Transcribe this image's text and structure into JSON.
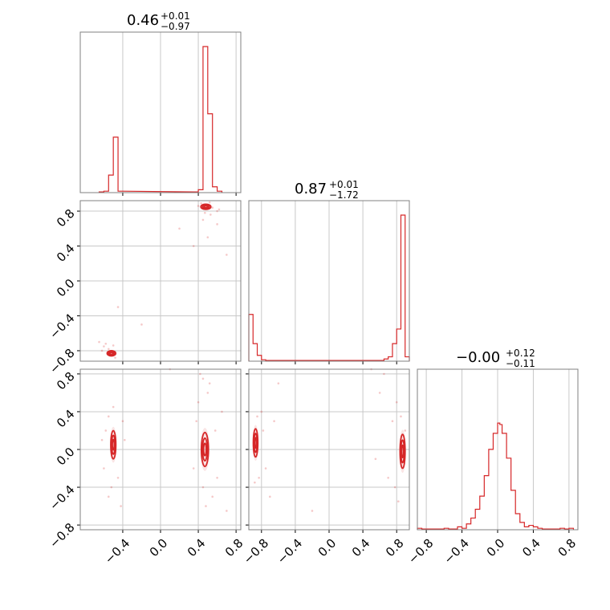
{
  "chart_data": {
    "type": "corner",
    "parameters": [
      {
        "value": "0.46",
        "upper": "+0.01",
        "lower": "−0.97"
      },
      {
        "value": "0.87",
        "upper": "+0.01",
        "lower": "−1.72"
      },
      {
        "value": "−0.00",
        "upper": "+0.12",
        "lower": "−0.11"
      }
    ],
    "xlim": [
      [
        -0.85,
        0.85
      ],
      [
        -0.95,
        0.95
      ],
      [
        -0.9,
        0.9
      ]
    ],
    "ylim": [
      [
        -0.92,
        0.92
      ],
      [
        -0.85,
        0.85
      ]
    ],
    "ticks": {
      "p0": [
        "−0.4",
        "0.0",
        "0.4",
        "0.8"
      ],
      "p1": [
        "−0.8",
        "−0.4",
        "0.0",
        "0.4",
        "0.8"
      ],
      "p2": [
        "−0.8",
        "−0.4",
        "0.0",
        "0.4",
        "0.8"
      ]
    },
    "tick_values": {
      "p0": [
        -0.4,
        0.0,
        0.4,
        0.8
      ],
      "p1": [
        -0.8,
        -0.4,
        0.0,
        0.4,
        0.8
      ],
      "p2": [
        -0.8,
        -0.4,
        0.0,
        0.4,
        0.8
      ]
    },
    "histograms": [
      {
        "parameter": 0,
        "bins": [
          [
            -0.65,
            -0.6,
            0.005
          ],
          [
            -0.6,
            -0.55,
            0.01
          ],
          [
            -0.55,
            -0.5,
            0.12
          ],
          [
            -0.5,
            -0.45,
            0.38
          ],
          [
            -0.45,
            -0.4,
            0.01
          ],
          [
            0.35,
            0.4,
            0.005
          ],
          [
            0.4,
            0.45,
            0.02
          ],
          [
            0.45,
            0.5,
            1.0
          ],
          [
            0.5,
            0.55,
            0.54
          ],
          [
            0.55,
            0.6,
            0.04
          ],
          [
            0.6,
            0.65,
            0.01
          ]
        ]
      },
      {
        "parameter": 1,
        "bins": [
          [
            -0.95,
            -0.9,
            0.32
          ],
          [
            -0.9,
            -0.85,
            0.12
          ],
          [
            -0.85,
            -0.8,
            0.04
          ],
          [
            -0.8,
            -0.75,
            0.01
          ],
          [
            -0.75,
            0.65,
            0.005
          ],
          [
            0.65,
            0.7,
            0.015
          ],
          [
            0.7,
            0.75,
            0.03
          ],
          [
            0.75,
            0.8,
            0.12
          ],
          [
            0.8,
            0.85,
            0.22
          ],
          [
            0.85,
            0.9,
            1.0
          ],
          [
            0.9,
            0.95,
            0.03
          ]
        ]
      },
      {
        "parameter": 2,
        "bins": [
          [
            -0.9,
            -0.85,
            0.01
          ],
          [
            -0.85,
            -0.6,
            0.005
          ],
          [
            -0.6,
            -0.55,
            0.01
          ],
          [
            -0.55,
            -0.45,
            0.005
          ],
          [
            -0.45,
            -0.4,
            0.02
          ],
          [
            -0.4,
            -0.35,
            0.01
          ],
          [
            -0.35,
            -0.3,
            0.04
          ],
          [
            -0.3,
            -0.25,
            0.08
          ],
          [
            -0.25,
            -0.2,
            0.14
          ],
          [
            -0.2,
            -0.15,
            0.23
          ],
          [
            -0.15,
            -0.1,
            0.37
          ],
          [
            -0.1,
            -0.05,
            0.55
          ],
          [
            -0.05,
            0.0,
            0.66
          ],
          [
            0.0,
            0.025,
            0.73
          ],
          [
            0.025,
            0.05,
            0.72
          ],
          [
            0.05,
            0.1,
            0.66
          ],
          [
            0.1,
            0.15,
            0.49
          ],
          [
            0.15,
            0.2,
            0.27
          ],
          [
            0.2,
            0.25,
            0.11
          ],
          [
            0.25,
            0.3,
            0.05
          ],
          [
            0.3,
            0.35,
            0.02
          ],
          [
            0.35,
            0.4,
            0.03
          ],
          [
            0.4,
            0.45,
            0.02
          ],
          [
            0.45,
            0.5,
            0.01
          ],
          [
            0.5,
            0.7,
            0.005
          ],
          [
            0.7,
            0.75,
            0.01
          ],
          [
            0.75,
            0.8,
            0.005
          ],
          [
            0.8,
            0.85,
            0.01
          ]
        ]
      }
    ],
    "scatter_panels": [
      {
        "x_param": 0,
        "y_param": 1,
        "modes": [
          {
            "cx": 0.48,
            "cy": 0.85,
            "sx": 0.035,
            "sy": 0.02
          },
          {
            "cx": -0.52,
            "cy": -0.83,
            "sx": 0.03,
            "sy": 0.02
          }
        ],
        "points": [
          [
            0.43,
            0.89
          ],
          [
            0.55,
            0.84
          ],
          [
            0.6,
            0.8
          ],
          [
            0.4,
            0.86
          ],
          [
            0.52,
            0.9
          ],
          [
            0.62,
            0.82
          ],
          [
            0.45,
            0.7
          ],
          [
            0.5,
            0.5
          ],
          [
            0.35,
            0.4
          ],
          [
            0.2,
            0.6
          ],
          [
            -0.6,
            -0.75
          ],
          [
            -0.65,
            -0.7
          ],
          [
            -0.55,
            -0.78
          ],
          [
            -0.62,
            -0.8
          ],
          [
            -0.48,
            -0.88
          ],
          [
            -0.45,
            -0.3
          ],
          [
            -0.2,
            -0.5
          ],
          [
            0.7,
            0.3
          ],
          [
            0.6,
            0.65
          ],
          [
            0.47,
            0.78
          ],
          [
            0.53,
            0.76
          ],
          [
            -0.58,
            -0.72
          ],
          [
            -0.5,
            -0.74
          ]
        ]
      },
      {
        "x_param": 0,
        "y_param": 2,
        "modes": [
          {
            "cx": -0.5,
            "cy": 0.05,
            "sx": 0.018,
            "sy": 0.1
          },
          {
            "cx": 0.47,
            "cy": 0.0,
            "sx": 0.025,
            "sy": 0.12
          }
        ],
        "points": [
          [
            -0.55,
            0.35
          ],
          [
            -0.5,
            0.45
          ],
          [
            -0.45,
            -0.3
          ],
          [
            -0.52,
            -0.4
          ],
          [
            -0.58,
            0.2
          ],
          [
            -0.6,
            -0.2
          ],
          [
            -0.4,
            0.3
          ],
          [
            -0.42,
            -0.6
          ],
          [
            -0.55,
            -0.5
          ],
          [
            0.4,
            0.5
          ],
          [
            0.5,
            0.6
          ],
          [
            0.45,
            -0.4
          ],
          [
            0.55,
            -0.5
          ],
          [
            0.38,
            0.3
          ],
          [
            0.6,
            -0.3
          ],
          [
            0.52,
            0.7
          ],
          [
            0.45,
            0.75
          ],
          [
            0.58,
            0.2
          ],
          [
            0.35,
            -0.2
          ],
          [
            0.48,
            -0.6
          ],
          [
            0.7,
            -0.65
          ],
          [
            0.65,
            0.4
          ],
          [
            0.42,
            0.8
          ],
          [
            0.1,
            0.85
          ],
          [
            -0.62,
            0.1
          ],
          [
            -0.38,
            0.1
          ]
        ]
      },
      {
        "x_param": 1,
        "y_param": 2,
        "modes": [
          {
            "cx": -0.87,
            "cy": 0.07,
            "sx": 0.018,
            "sy": 0.1
          },
          {
            "cx": 0.87,
            "cy": -0.02,
            "sx": 0.02,
            "sy": 0.12
          }
        ],
        "points": [
          [
            -0.85,
            0.35
          ],
          [
            -0.8,
            0.4
          ],
          [
            -0.83,
            -0.3
          ],
          [
            -0.88,
            -0.35
          ],
          [
            -0.78,
            0.2
          ],
          [
            -0.75,
            -0.2
          ],
          [
            -0.7,
            -0.5
          ],
          [
            -0.65,
            0.3
          ],
          [
            0.8,
            0.5
          ],
          [
            0.85,
            0.35
          ],
          [
            0.78,
            -0.4
          ],
          [
            0.82,
            -0.55
          ],
          [
            0.75,
            0.3
          ],
          [
            0.7,
            -0.3
          ],
          [
            0.65,
            0.8
          ],
          [
            0.55,
            -0.1
          ],
          [
            0.6,
            0.6
          ],
          [
            0.9,
            0.2
          ],
          [
            0.5,
            0.85
          ],
          [
            -0.6,
            0.7
          ],
          [
            -0.2,
            -0.65
          ]
        ]
      }
    ]
  }
}
